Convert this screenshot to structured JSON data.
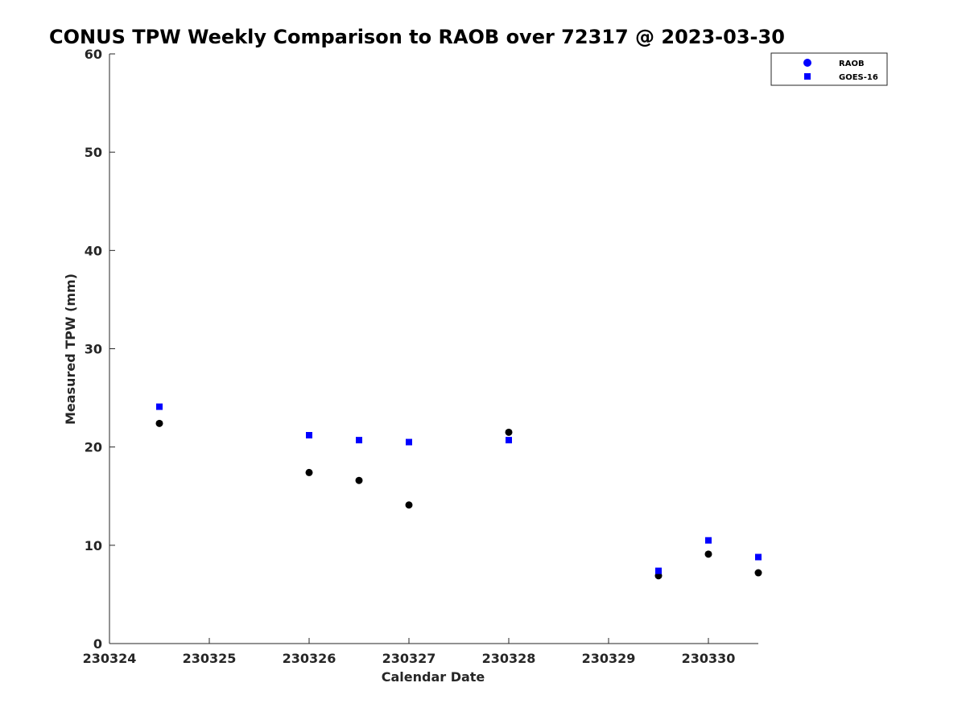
{
  "chart_data": {
    "type": "scatter",
    "title": "CONUS TPW Weekly Comparison to RAOB over 72317 @ 2023-03-30",
    "xlabel": "Calendar Date",
    "ylabel": "Measured TPW (mm)",
    "x_tick_labels": [
      "230324",
      "230325",
      "230326",
      "230327",
      "230328",
      "230329",
      "230330"
    ],
    "x_tick_days": [
      0,
      1,
      2,
      3,
      4,
      5,
      6
    ],
    "xlim_days": [
      0,
      6.5
    ],
    "ylim": [
      0,
      60
    ],
    "y_ticks": [
      0,
      10,
      20,
      30,
      40,
      50,
      60
    ],
    "grid": false,
    "legend_position": "top-right",
    "series": [
      {
        "name": "RAOB",
        "marker": "circle",
        "color": "#000000",
        "legend_color": "#0000ff",
        "x_days": [
          0.5,
          2.0,
          2.5,
          3.0,
          4.0,
          5.5,
          6.0,
          6.5
        ],
        "y": [
          22.4,
          17.4,
          16.6,
          14.1,
          21.5,
          6.9,
          9.1,
          7.2
        ]
      },
      {
        "name": "GOES-16",
        "marker": "square",
        "color": "#0000ff",
        "legend_color": "#0000ff",
        "x_days": [
          0.5,
          2.0,
          2.5,
          3.0,
          4.0,
          5.5,
          6.0,
          6.5
        ],
        "y": [
          24.1,
          21.2,
          20.7,
          20.5,
          20.7,
          7.4,
          10.5,
          8.8
        ]
      }
    ]
  }
}
